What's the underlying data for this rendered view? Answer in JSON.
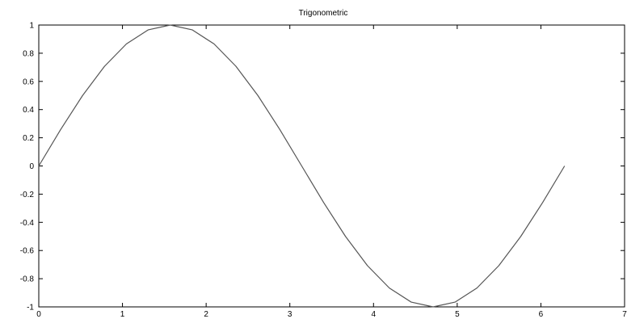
{
  "chart_data": {
    "type": "line",
    "title": "Trigonometric",
    "xlabel": "",
    "ylabel": "",
    "xlim": [
      0,
      7
    ],
    "ylim": [
      -1,
      1
    ],
    "x_ticks": [
      0,
      1,
      2,
      3,
      4,
      5,
      6,
      7
    ],
    "x_tick_labels": [
      "0",
      "1",
      "2",
      "3",
      "4",
      "5",
      "6",
      "7"
    ],
    "y_ticks": [
      1,
      0.8,
      0.6,
      0.4,
      0.2,
      0,
      -0.2,
      -0.4,
      -0.6,
      -0.8,
      -1
    ],
    "y_tick_labels": [
      "1",
      "0.8",
      "0.6",
      "0.4",
      "0.2",
      "0",
      "-0.2",
      "-0.4",
      "-0.6",
      "-0.8",
      "-1"
    ],
    "grid": false,
    "series": [
      {
        "color": "#555555",
        "x": [
          0,
          0.2618,
          0.5236,
          0.7854,
          1.0472,
          1.309,
          1.5708,
          1.8326,
          2.0944,
          2.3562,
          2.618,
          2.8798,
          3.1416,
          3.4034,
          3.6652,
          3.927,
          4.1888,
          4.4506,
          4.7124,
          4.9742,
          5.236,
          5.4978,
          5.7596,
          6.0214,
          6.2832
        ],
        "y": [
          0,
          0.259,
          0.5,
          0.707,
          0.866,
          0.966,
          1,
          0.966,
          0.866,
          0.707,
          0.5,
          0.259,
          0,
          -0.259,
          -0.5,
          -0.707,
          -0.866,
          -0.966,
          -1,
          -0.966,
          -0.866,
          -0.707,
          -0.5,
          -0.259,
          0
        ]
      }
    ]
  }
}
